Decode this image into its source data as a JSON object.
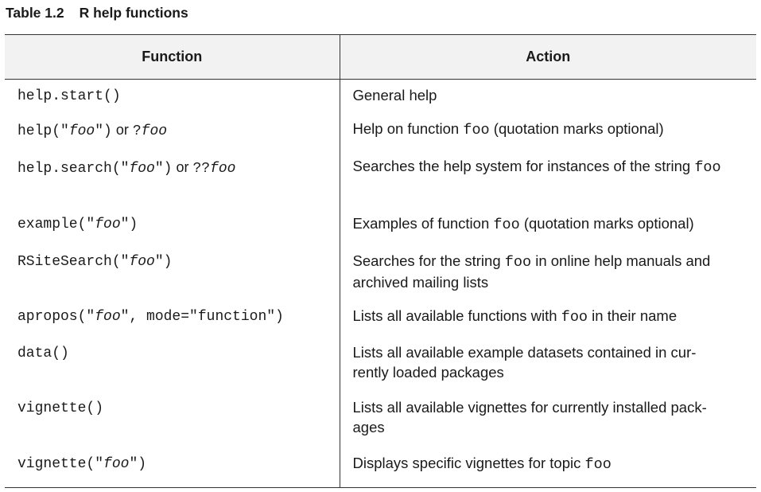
{
  "caption": {
    "number": "Table 1.2",
    "title": "R help functions"
  },
  "table": {
    "headers": {
      "function": "Function",
      "action": "Action"
    },
    "rows": [
      {
        "fn": {
          "a": "help.start()"
        },
        "action": {
          "a": "General help"
        }
      },
      {
        "fn": {
          "a": "help(\"",
          "b": "foo",
          "c": "\")",
          "or": " or ",
          "d": "?",
          "e": "foo"
        },
        "action": {
          "a": "Help on function ",
          "code": "foo",
          "b": " (quotation marks optional)"
        }
      },
      {
        "fn": {
          "a": "help.search(\"",
          "b": "foo",
          "c": "\")",
          "or": " or ",
          "d": "??",
          "e": "foo"
        },
        "action": {
          "a": "Searches the help system for instances of the string ",
          "code": "foo"
        }
      },
      {
        "fn": {
          "a": "example(\"",
          "b": "foo",
          "c": "\")"
        },
        "action": {
          "a": "Examples of function ",
          "code": "foo",
          "b": " (quotation marks optional)"
        }
      },
      {
        "fn": {
          "a": "RSiteSearch(\"",
          "b": "foo",
          "c": "\")"
        },
        "action": {
          "a": "Searches for the string ",
          "code": "foo",
          "b": " in online help manuals and archived mailing lists"
        }
      },
      {
        "fn": {
          "a": "apropos(\"",
          "b": "foo",
          "c": "\", mode=\"function\")"
        },
        "action": {
          "a": "Lists all available functions with ",
          "code": "foo",
          "b": " in their name"
        }
      },
      {
        "fn": {
          "a": "data()"
        },
        "action": {
          "a": "Lists all available example datasets contained in cur-",
          "b": "rently loaded packages"
        }
      },
      {
        "fn": {
          "a": "vignette()"
        },
        "action": {
          "a": "Lists all available vignettes for currently installed pack-",
          "b": "ages"
        }
      },
      {
        "fn": {
          "a": "vignette(\"",
          "b": "foo",
          "c": "\")"
        },
        "action": {
          "a": "Displays specific vignettes for topic ",
          "code": "foo"
        }
      }
    ]
  }
}
